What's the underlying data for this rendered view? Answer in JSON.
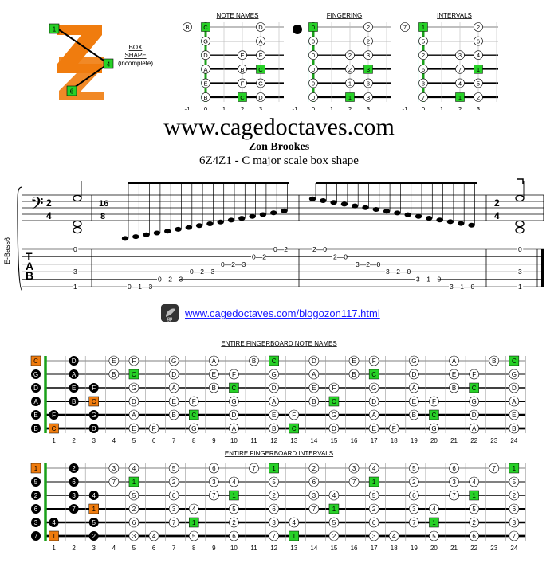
{
  "header": {
    "site": "www.cagedoctaves.com",
    "author": "Zon Brookes",
    "subtitle": "6Z4Z1 - C major scale box shape",
    "link": "www.cagedoctaves.com/blogozon117.html"
  },
  "box_shape": {
    "label1": "BOX",
    "label2": "SHAPE",
    "label3": "(incomplete)",
    "marks": [
      "1",
      "4",
      "6"
    ]
  },
  "mini_diagrams": {
    "note_names_title": "NOTE NAMES",
    "fingering_title": "FINGERING",
    "intervals_title": "INTERVALS",
    "fret_labels": [
      "-1",
      "0",
      "1",
      "2",
      "3"
    ],
    "note_names_open": [
      "B",
      "",
      "",
      "",
      "",
      ""
    ],
    "intervals_open": [
      "7",
      "",
      "",
      "",
      "",
      ""
    ],
    "note_grid": [
      [
        "C",
        "",
        "D"
      ],
      [
        "G",
        "",
        "A"
      ],
      [
        "D",
        "E",
        "F"
      ],
      [
        "A",
        "B",
        "C"
      ],
      [
        "E",
        "F",
        "G"
      ],
      [
        "B",
        "C",
        "D"
      ]
    ],
    "finger_grid": [
      [
        "0",
        "",
        "2"
      ],
      [
        "0",
        "",
        "2"
      ],
      [
        "0",
        "2",
        "3"
      ],
      [
        "0",
        "2",
        "3"
      ],
      [
        "0",
        "1",
        "3"
      ],
      [
        "0",
        "1",
        "3"
      ]
    ],
    "interval_grid": [
      [
        "1",
        "",
        "2"
      ],
      [
        "5",
        "",
        "6"
      ],
      [
        "2",
        "3",
        "4"
      ],
      [
        "6",
        "7",
        "1"
      ],
      [
        "3",
        "4",
        "5"
      ],
      [
        "7",
        "1",
        "2"
      ]
    ]
  },
  "staff": {
    "instrument": "E-Bass6",
    "time_sig_left": [
      "2",
      "4"
    ],
    "time_sig_mid": [
      "16",
      "8"
    ],
    "time_sig_right": [
      "2",
      "4"
    ],
    "tab_letters": [
      "T",
      "A",
      "B"
    ],
    "bar1_open": [
      "0",
      "3",
      "1"
    ],
    "bar3_close": [
      "0",
      "3",
      "1"
    ],
    "tab_runs": [
      "0—1—3",
      "0—2—3",
      "0—2—3",
      "0—2",
      "0—2",
      "2—0",
      "2—0",
      "3—2—0",
      "3—2—0",
      "3—1—0",
      "3—1—0"
    ]
  },
  "fretboard_notes": {
    "title": "ENTIRE FINGERBOARD NOTE NAMES",
    "open": [
      "C",
      "G",
      "D",
      "A",
      "E",
      "B"
    ],
    "rows": [
      [
        "",
        "D",
        "",
        "E",
        "F",
        "",
        "G",
        "",
        "A",
        "",
        "B",
        "C",
        "",
        "D",
        "",
        "E",
        "F",
        "",
        "G",
        "",
        "A",
        "",
        "B",
        "C"
      ],
      [
        "",
        "A",
        "",
        "B",
        "C",
        "",
        "D",
        "",
        "E",
        "F",
        "",
        "G",
        "",
        "A",
        "",
        "B",
        "C",
        "",
        "D",
        "",
        "E",
        "F",
        "",
        "G"
      ],
      [
        "",
        "E",
        "F",
        "",
        "G",
        "",
        "A",
        "",
        "B",
        "C",
        "",
        "D",
        "",
        "E",
        "F",
        "",
        "G",
        "",
        "A",
        "",
        "B",
        "C",
        "",
        "D"
      ],
      [
        "",
        "B",
        "C",
        "",
        "D",
        "",
        "E",
        "F",
        "",
        "G",
        "",
        "A",
        "",
        "B",
        "C",
        "",
        "D",
        "",
        "E",
        "F",
        "",
        "G",
        "",
        "A"
      ],
      [
        "F",
        "",
        "G",
        "",
        "A",
        "",
        "B",
        "C",
        "",
        "D",
        "",
        "E",
        "F",
        "",
        "G",
        "",
        "A",
        "",
        "B",
        "C",
        "",
        "D",
        "",
        "E"
      ],
      [
        "C",
        "",
        "D",
        "",
        "E",
        "F",
        "",
        "G",
        "",
        "A",
        "",
        "B",
        "C",
        "",
        "D",
        "",
        "E",
        "F",
        "",
        "G",
        "",
        "A",
        "",
        "B"
      ]
    ],
    "fret_numbers": [
      "1",
      "2",
      "3",
      "4",
      "5",
      "6",
      "7",
      "8",
      "9",
      "10",
      "11",
      "12",
      "13",
      "14",
      "15",
      "16",
      "17",
      "18",
      "19",
      "20",
      "21",
      "22",
      "23",
      "24"
    ]
  },
  "fretboard_intervals": {
    "title": "ENTIRE FINGERBOARD INTERVALS",
    "open": [
      "1",
      "5",
      "2",
      "6",
      "3",
      "7"
    ],
    "rows": [
      [
        "",
        "2",
        "",
        "3",
        "4",
        "",
        "5",
        "",
        "6",
        "",
        "7",
        "1",
        "",
        "2",
        "",
        "3",
        "4",
        "",
        "5",
        "",
        "6",
        "",
        "7",
        "1"
      ],
      [
        "",
        "6",
        "",
        "7",
        "1",
        "",
        "2",
        "",
        "3",
        "4",
        "",
        "5",
        "",
        "6",
        "",
        "7",
        "1",
        "",
        "2",
        "",
        "3",
        "4",
        "",
        "5"
      ],
      [
        "",
        "3",
        "4",
        "",
        "5",
        "",
        "6",
        "",
        "7",
        "1",
        "",
        "2",
        "",
        "3",
        "4",
        "",
        "5",
        "",
        "6",
        "",
        "7",
        "1",
        "",
        "2"
      ],
      [
        "",
        "7",
        "1",
        "",
        "2",
        "",
        "3",
        "4",
        "",
        "5",
        "",
        "6",
        "",
        "7",
        "1",
        "",
        "2",
        "",
        "3",
        "4",
        "",
        "5",
        "",
        "6"
      ],
      [
        "4",
        "",
        "5",
        "",
        "6",
        "",
        "7",
        "1",
        "",
        "2",
        "",
        "3",
        "4",
        "",
        "5",
        "",
        "6",
        "",
        "7",
        "1",
        "",
        "2",
        "",
        "3"
      ],
      [
        "1",
        "",
        "2",
        "",
        "3",
        "4",
        "",
        "5",
        "",
        "6",
        "",
        "7",
        "1",
        "",
        "2",
        "",
        "3",
        "4",
        "",
        "5",
        "",
        "6",
        "",
        "7"
      ]
    ],
    "fret_numbers": [
      "1",
      "2",
      "3",
      "4",
      "5",
      "6",
      "7",
      "8",
      "9",
      "10",
      "11",
      "12",
      "13",
      "14",
      "15",
      "16",
      "17",
      "18",
      "19",
      "20",
      "21",
      "22",
      "23",
      "24"
    ]
  },
  "colors": {
    "orange": "#f07c0e",
    "green": "#27d127",
    "black": "#000000",
    "nut_green": "#1aa01a"
  }
}
